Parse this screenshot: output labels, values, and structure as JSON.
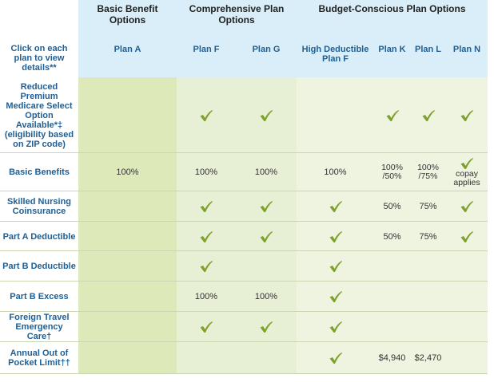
{
  "headers": {
    "basic_group": "Basic Benefit Options",
    "comprehensive_group": "Comprehensive Plan Options",
    "budget_group": "Budget-Conscious Plan Options",
    "instruction": "Click on each plan to view details**",
    "plans": [
      "Plan A",
      "Plan F",
      "Plan G",
      "High Deductible Plan F",
      "Plan K",
      "Plan L",
      "Plan N"
    ]
  },
  "rows": [
    {
      "label": "Reduced Premium Medicare Select Option Available*‡ (eligibility based on ZIP code)",
      "cells": [
        "",
        "check",
        "check",
        "",
        "check",
        "check",
        "check"
      ]
    },
    {
      "label": "Basic Benefits",
      "cells": [
        "100%",
        "100%",
        "100%",
        "100%",
        "100% /50%",
        "100% /75%",
        "check+copay applies"
      ]
    },
    {
      "label": "Skilled Nursing Coinsurance",
      "cells": [
        "",
        "check",
        "check",
        "check",
        "50%",
        "75%",
        "check"
      ]
    },
    {
      "label": "Part A Deductible",
      "cells": [
        "",
        "check",
        "check",
        "check",
        "50%",
        "75%",
        "check"
      ]
    },
    {
      "label": "Part B Deductible",
      "cells": [
        "",
        "check",
        "",
        "check",
        "",
        "",
        ""
      ]
    },
    {
      "label": "Part B Excess",
      "cells": [
        "",
        "100%",
        "100%",
        "check",
        "",
        "",
        ""
      ]
    },
    {
      "label": "Foreign Travel Emergency Care†",
      "cells": [
        "",
        "check",
        "check",
        "check",
        "",
        "",
        ""
      ]
    },
    {
      "label": "Annual Out of Pocket Limit††",
      "cells": [
        "",
        "",
        "",
        "check",
        "$4,940",
        "$2,470",
        ""
      ]
    }
  ],
  "copay_text": "copay applies",
  "colors": {
    "header_bg": "#d9eef8",
    "plan_a_bg": "#dde9b9",
    "comp_bg": "#e7efd4",
    "budget_bg": "#eef4e0",
    "label_blue": "#1f5f94",
    "check_green": "#7ea12a"
  },
  "icons": {
    "included": "check-icon"
  }
}
